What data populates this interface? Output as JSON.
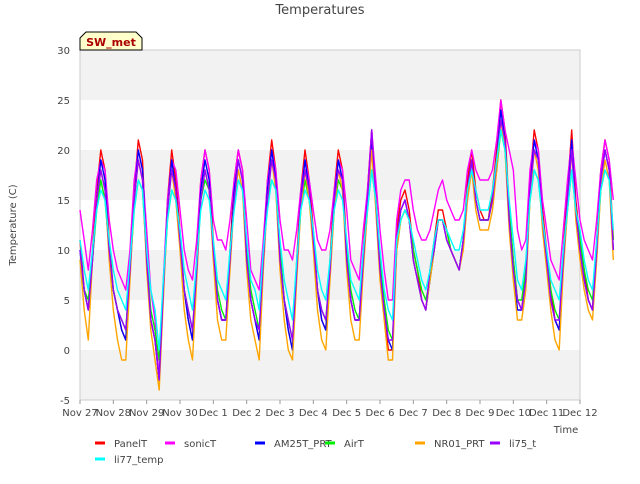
{
  "chart_data": {
    "type": "line",
    "title": "Temperatures",
    "xlabel": "Time",
    "ylabel": "Temperature (C)",
    "ylim": [
      -5,
      30
    ],
    "yticks": [
      -5,
      0,
      5,
      10,
      15,
      20,
      25,
      30
    ],
    "xlim": [
      "2023-11-27",
      "2023-12-12"
    ],
    "xticks": [
      "Nov 27",
      "Nov 28",
      "Nov 29",
      "Nov 30",
      "Dec 1",
      "Dec 2",
      "Dec 3",
      "Dec 4",
      "Dec 5",
      "Dec 6",
      "Dec 7",
      "Dec 8",
      "Dec 9",
      "Dec 10",
      "Dec 11",
      "Dec 12"
    ],
    "annotation": "SW_met",
    "grid": "horizontal bands",
    "legend_position": "bottom",
    "x_time_step_hours": 3,
    "x_start": "2023-11-27 00:00",
    "series": [
      {
        "name": "PanelT",
        "color": "#ff0000",
        "values": [
          11,
          6,
          4,
          10,
          16,
          20,
          18,
          11,
          6,
          4,
          2,
          1,
          8,
          16,
          21,
          19,
          10,
          3,
          1,
          -3,
          6,
          15,
          20,
          17,
          12,
          6,
          3,
          1,
          9,
          17,
          20,
          18,
          11,
          5,
          3,
          3,
          10,
          17,
          20,
          18,
          10,
          5,
          3,
          1,
          10,
          17,
          21,
          18,
          10,
          5,
          2,
          0,
          9,
          16,
          20,
          17,
          12,
          6,
          3,
          2,
          9,
          16,
          20,
          18,
          10,
          5,
          3,
          3,
          10,
          16,
          22,
          16,
          8,
          4,
          0,
          0,
          12,
          15,
          16,
          14,
          10,
          8,
          5,
          4,
          8,
          11,
          14,
          14,
          12,
          10,
          9,
          8,
          11,
          17,
          20,
          16,
          14,
          13,
          13,
          16,
          20,
          25,
          22,
          14,
          9,
          5,
          4,
          8,
          17,
          22,
          20,
          14,
          10,
          6,
          3,
          2,
          10,
          16,
          22,
          15,
          11,
          8,
          5,
          4,
          11,
          18,
          21,
          19,
          11
        ]
      },
      {
        "name": "sonicT",
        "color": "#ff00ff",
        "values": [
          14,
          11,
          8,
          12,
          17,
          19,
          18,
          13,
          10,
          8,
          7,
          6,
          10,
          17,
          20,
          18,
          12,
          6,
          3,
          -3,
          7,
          15,
          19,
          18,
          14,
          10,
          8,
          7,
          11,
          17,
          20,
          18,
          13,
          11,
          11,
          10,
          13,
          17,
          20,
          18,
          13,
          8,
          7,
          6,
          11,
          17,
          20,
          18,
          13,
          10,
          10,
          9,
          12,
          16,
          19,
          17,
          14,
          11,
          10,
          10,
          12,
          16,
          19,
          18,
          14,
          9,
          8,
          7,
          12,
          16,
          22,
          17,
          12,
          8,
          5,
          5,
          13,
          16,
          17,
          17,
          14,
          12,
          11,
          11,
          12,
          14,
          16,
          17,
          15,
          14,
          13,
          13,
          14,
          18,
          20,
          18,
          17,
          17,
          17,
          18,
          21,
          25,
          22,
          20,
          18,
          12,
          10,
          11,
          18,
          21,
          20,
          15,
          12,
          9,
          8,
          7,
          12,
          17,
          21,
          17,
          13,
          11,
          10,
          9,
          13,
          18,
          21,
          19,
          15
        ]
      },
      {
        "name": "AM25T_PRT",
        "color": "#0000ff",
        "values": [
          10,
          6,
          4,
          9,
          15,
          19,
          17,
          10,
          6,
          4,
          2,
          1,
          8,
          15,
          20,
          18,
          9,
          3,
          1,
          -3,
          6,
          14,
          19,
          16,
          11,
          6,
          3,
          1,
          8,
          16,
          19,
          17,
          10,
          5,
          3,
          3,
          9,
          16,
          19,
          17,
          9,
          5,
          3,
          1,
          9,
          16,
          20,
          17,
          9,
          5,
          2,
          0,
          8,
          15,
          19,
          16,
          11,
          6,
          3,
          2,
          8,
          15,
          19,
          17,
          9,
          5,
          3,
          3,
          9,
          15,
          21,
          15,
          8,
          4,
          1,
          0,
          11,
          14,
          15,
          13,
          9,
          7,
          5,
          4,
          7,
          10,
          13,
          13,
          11,
          10,
          9,
          8,
          11,
          16,
          19,
          15,
          13,
          13,
          13,
          15,
          19,
          24,
          21,
          13,
          8,
          4,
          4,
          7,
          16,
          21,
          19,
          13,
          9,
          5,
          3,
          2,
          9,
          15,
          21,
          14,
          10,
          7,
          5,
          4,
          10,
          17,
          20,
          18,
          10
        ]
      },
      {
        "name": "AirT",
        "color": "#00ee00",
        "values": [
          9,
          6,
          5,
          9,
          14,
          17,
          15,
          10,
          6,
          4,
          3,
          2,
          8,
          14,
          17,
          16,
          9,
          4,
          2,
          -1,
          6,
          13,
          16,
          15,
          11,
          6,
          4,
          2,
          8,
          15,
          17,
          16,
          10,
          6,
          4,
          3,
          9,
          15,
          17,
          16,
          10,
          6,
          4,
          2,
          9,
          15,
          17,
          16,
          10,
          5,
          3,
          1,
          8,
          14,
          17,
          15,
          11,
          6,
          4,
          3,
          8,
          14,
          17,
          16,
          10,
          6,
          4,
          3,
          9,
          14,
          18,
          15,
          9,
          5,
          2,
          1,
          10,
          13,
          14,
          13,
          10,
          8,
          6,
          5,
          7,
          10,
          13,
          13,
          12,
          10,
          9,
          8,
          11,
          16,
          18,
          15,
          13,
          13,
          13,
          15,
          18,
          22,
          20,
          14,
          9,
          5,
          5,
          8,
          15,
          18,
          17,
          13,
          9,
          6,
          4,
          3,
          9,
          14,
          18,
          14,
          11,
          8,
          6,
          5,
          10,
          16,
          18,
          17,
          11
        ]
      },
      {
        "name": "NR01_PRT",
        "color": "#ffa500",
        "values": [
          9,
          4,
          1,
          9,
          15,
          18,
          16,
          9,
          4,
          1,
          -1,
          -1,
          7,
          15,
          19,
          17,
          8,
          2,
          -1,
          -4,
          5,
          14,
          18,
          15,
          10,
          4,
          1,
          -1,
          7,
          15,
          18,
          16,
          9,
          3,
          1,
          1,
          8,
          15,
          18,
          16,
          8,
          3,
          1,
          -1,
          8,
          15,
          19,
          16,
          8,
          3,
          0,
          -1,
          7,
          14,
          18,
          15,
          10,
          4,
          1,
          0,
          7,
          14,
          18,
          16,
          8,
          3,
          1,
          1,
          8,
          14,
          20,
          14,
          7,
          3,
          -1,
          -1,
          10,
          13,
          14,
          13,
          9,
          7,
          5,
          4,
          7,
          10,
          13,
          13,
          11,
          10,
          9,
          8,
          10,
          15,
          18,
          14,
          12,
          12,
          12,
          14,
          18,
          23,
          20,
          12,
          7,
          3,
          3,
          6,
          15,
          20,
          18,
          12,
          8,
          4,
          1,
          0,
          8,
          14,
          20,
          13,
          9,
          6,
          4,
          3,
          9,
          16,
          19,
          17,
          9
        ]
      },
      {
        "name": "li75_t",
        "color": "#9900ff",
        "values": [
          10,
          6,
          4,
          9,
          15,
          18,
          16,
          10,
          6,
          4,
          3,
          2,
          8,
          15,
          19,
          17,
          9,
          3,
          1,
          -3,
          6,
          14,
          18,
          16,
          11,
          6,
          4,
          2,
          8,
          15,
          18,
          16,
          10,
          5,
          3,
          3,
          9,
          15,
          19,
          17,
          9,
          5,
          3,
          2,
          9,
          15,
          19,
          17,
          9,
          5,
          3,
          1,
          8,
          15,
          18,
          16,
          11,
          6,
          4,
          3,
          8,
          15,
          18,
          17,
          9,
          5,
          3,
          3,
          9,
          15,
          22,
          15,
          8,
          4,
          1,
          1,
          11,
          14,
          15,
          13,
          9,
          7,
          5,
          4,
          8,
          10,
          13,
          13,
          11,
          10,
          9,
          8,
          11,
          16,
          19,
          15,
          13,
          13,
          13,
          15,
          19,
          23,
          21,
          13,
          8,
          5,
          4,
          7,
          16,
          20,
          19,
          13,
          9,
          5,
          3,
          3,
          9,
          15,
          20,
          14,
          10,
          7,
          5,
          4,
          10,
          17,
          20,
          18,
          10
        ]
      },
      {
        "name": "li77_temp",
        "color": "#00ffff",
        "values": [
          11,
          8,
          6,
          10,
          14,
          16,
          15,
          11,
          8,
          6,
          5,
          4,
          9,
          14,
          17,
          16,
          10,
          6,
          4,
          0,
          7,
          13,
          16,
          15,
          12,
          8,
          6,
          4,
          9,
          14,
          16,
          15,
          11,
          7,
          6,
          5,
          10,
          14,
          17,
          16,
          11,
          7,
          6,
          4,
          10,
          14,
          17,
          16,
          11,
          7,
          5,
          3,
          9,
          14,
          16,
          15,
          12,
          8,
          6,
          5,
          9,
          14,
          16,
          15,
          11,
          7,
          6,
          5,
          10,
          14,
          18,
          15,
          10,
          6,
          4,
          3,
          11,
          13,
          14,
          13,
          11,
          9,
          7,
          6,
          8,
          11,
          13,
          13,
          12,
          11,
          10,
          10,
          12,
          16,
          18,
          16,
          14,
          14,
          14,
          16,
          19,
          22,
          20,
          15,
          11,
          7,
          6,
          9,
          15,
          18,
          17,
          13,
          10,
          7,
          6,
          5,
          10,
          14,
          18,
          14,
          12,
          9,
          7,
          6,
          11,
          16,
          18,
          17,
          12
        ]
      }
    ]
  }
}
